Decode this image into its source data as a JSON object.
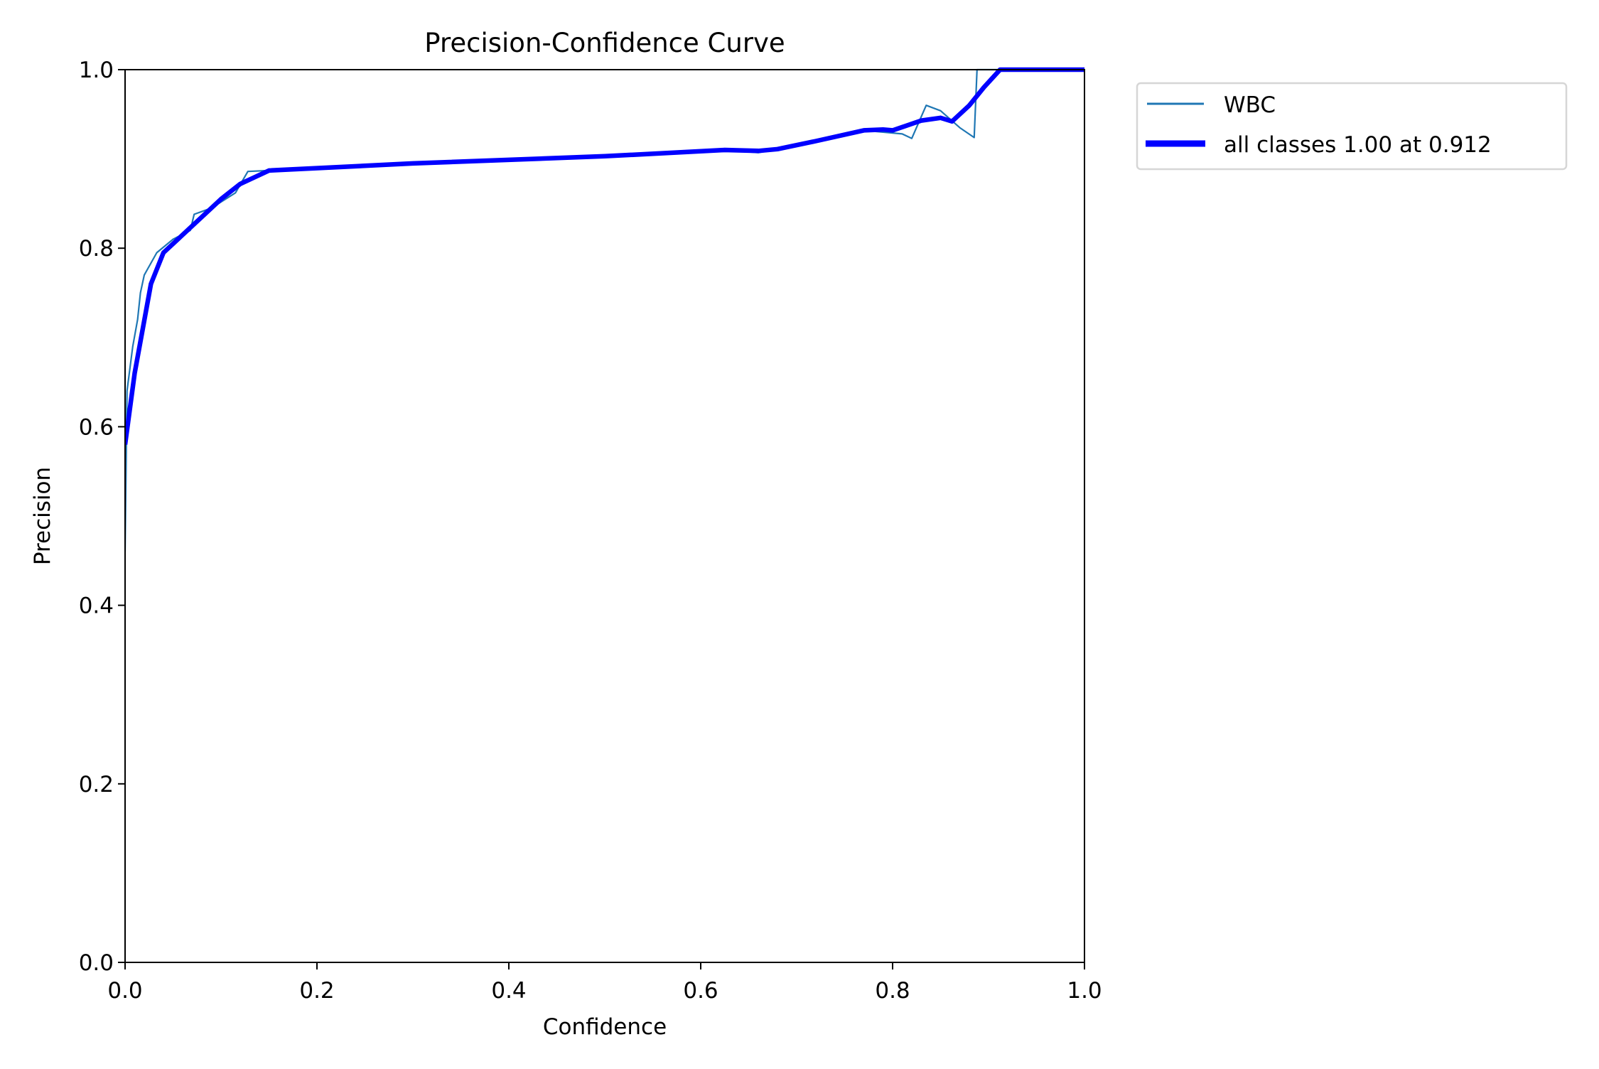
{
  "chart_data": {
    "type": "line",
    "title": "Precision-Confidence Curve",
    "xlabel": "Confidence",
    "ylabel": "Precision",
    "xlim": [
      0,
      1
    ],
    "ylim": [
      0,
      1
    ],
    "xticks": [
      "0.0",
      "0.2",
      "0.4",
      "0.6",
      "0.8",
      "1.0"
    ],
    "yticks": [
      "0.0",
      "0.2",
      "0.4",
      "0.6",
      "0.8",
      "1.0"
    ],
    "grid": false,
    "legend_placement": "outside-top-right",
    "series": [
      {
        "name": "WBC",
        "color": "#1f77b4",
        "x": [
          0,
          0.002,
          0.008,
          0.013,
          0.016,
          0.02,
          0.033,
          0.05,
          0.068,
          0.072,
          0.09,
          0.115,
          0.128,
          0.15,
          0.3,
          0.5,
          0.625,
          0.66,
          0.68,
          0.72,
          0.77,
          0.81,
          0.82,
          0.835,
          0.85,
          0.87,
          0.885,
          0.888,
          1.0
        ],
        "y": [
          0.46,
          0.64,
          0.69,
          0.72,
          0.75,
          0.77,
          0.795,
          0.81,
          0.82,
          0.838,
          0.845,
          0.862,
          0.886,
          0.887,
          0.895,
          0.903,
          0.91,
          0.907,
          0.911,
          0.92,
          0.932,
          0.928,
          0.923,
          0.96,
          0.954,
          0.935,
          0.924,
          1.0,
          1.0
        ]
      },
      {
        "name": "all classes 1.00 at 0.912",
        "color": "#0000ff",
        "x": [
          0,
          0.01,
          0.027,
          0.04,
          0.06,
          0.08,
          0.1,
          0.12,
          0.15,
          0.3,
          0.5,
          0.625,
          0.66,
          0.68,
          0.72,
          0.77,
          0.79,
          0.8,
          0.83,
          0.85,
          0.862,
          0.88,
          0.895,
          0.912,
          1.0
        ],
        "y": [
          0.58,
          0.66,
          0.76,
          0.795,
          0.815,
          0.835,
          0.855,
          0.872,
          0.887,
          0.895,
          0.903,
          0.91,
          0.909,
          0.911,
          0.92,
          0.932,
          0.933,
          0.932,
          0.943,
          0.946,
          0.942,
          0.96,
          0.98,
          1.0,
          1.0
        ]
      }
    ]
  }
}
